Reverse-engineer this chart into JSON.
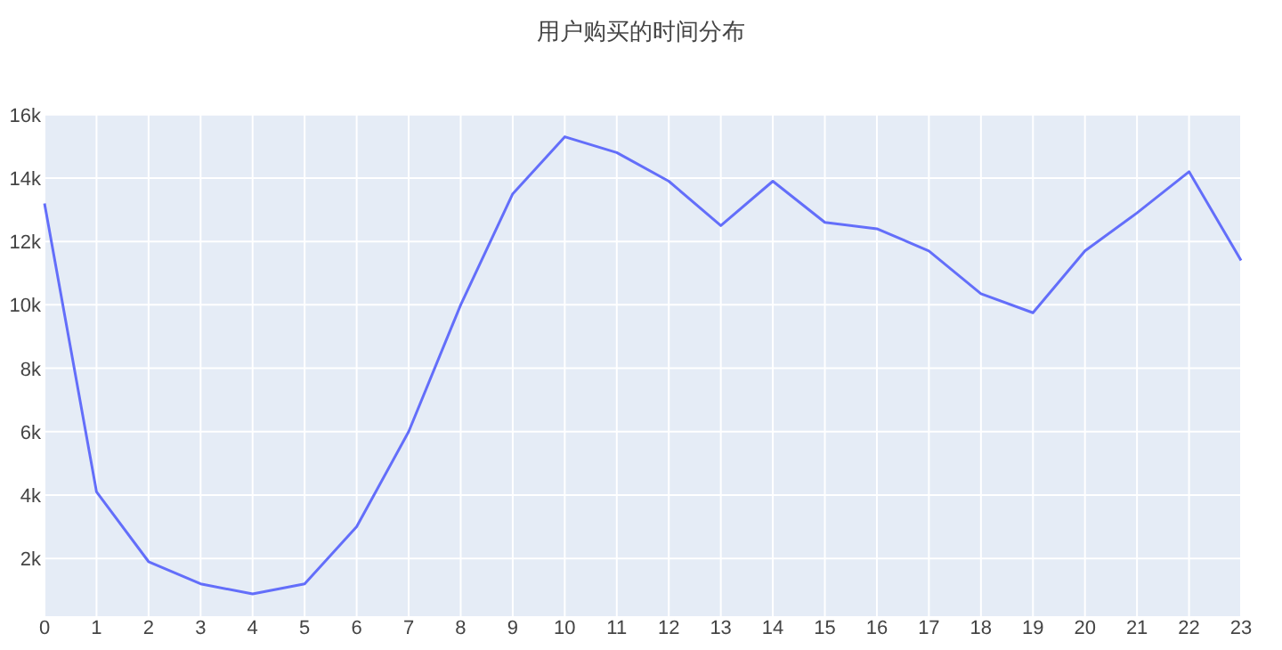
{
  "chart_data": {
    "type": "line",
    "title": "用户购买的时间分布",
    "x": [
      0,
      1,
      2,
      3,
      4,
      5,
      6,
      7,
      8,
      9,
      10,
      11,
      12,
      13,
      14,
      15,
      16,
      17,
      18,
      19,
      20,
      21,
      22,
      23
    ],
    "series": [
      {
        "color": "#636efa",
        "values": [
          13200,
          4100,
          1900,
          1200,
          880,
          1200,
          3000,
          6000,
          10000,
          13500,
          15300,
          14800,
          13900,
          12500,
          13900,
          12600,
          12400,
          11700,
          10350,
          9750,
          11700,
          12900,
          14200,
          11400
        ]
      }
    ],
    "xlim": [
      0,
      23
    ],
    "ylim": [
      180,
      16020
    ],
    "xticks": [
      0,
      1,
      2,
      3,
      4,
      5,
      6,
      7,
      8,
      9,
      10,
      11,
      12,
      13,
      14,
      15,
      16,
      17,
      18,
      19,
      20,
      21,
      22,
      23
    ],
    "yticks": [
      {
        "value": 2000,
        "label": "2k"
      },
      {
        "value": 4000,
        "label": "4k"
      },
      {
        "value": 6000,
        "label": "6k"
      },
      {
        "value": 8000,
        "label": "8k"
      },
      {
        "value": 10000,
        "label": "10k"
      },
      {
        "value": 12000,
        "label": "12k"
      },
      {
        "value": 14000,
        "label": "14k"
      },
      {
        "value": 16000,
        "label": "16k"
      }
    ],
    "grid": true
  }
}
